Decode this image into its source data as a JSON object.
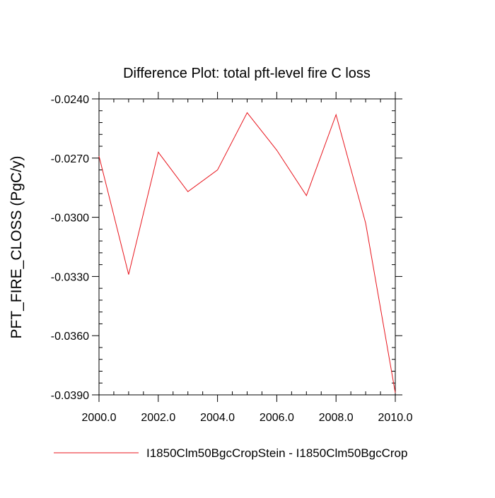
{
  "chart_data": {
    "type": "line",
    "title": "Difference Plot: total pft-level fire C loss",
    "xlabel": "",
    "ylabel": "PFT_FIRE_CLOSS  (PgC/y)",
    "xlim": [
      2000,
      2010
    ],
    "ylim": [
      -0.039,
      -0.024
    ],
    "x_ticks": [
      2000,
      2002,
      2004,
      2006,
      2008,
      2010
    ],
    "x_tick_labels": [
      "2000.0",
      "2002.0",
      "2004.0",
      "2006.0",
      "2008.0",
      "2010.0"
    ],
    "y_ticks": [
      -0.024,
      -0.027,
      -0.03,
      -0.033,
      -0.036,
      -0.039
    ],
    "y_tick_labels": [
      "-0.0240",
      "-0.0270",
      "-0.0300",
      "-0.0330",
      "-0.0360",
      "-0.0390"
    ],
    "grid": false,
    "legend_position": "bottom",
    "series": [
      {
        "name": "I1850Clm50BgcCropStein - I1850Clm50BgcCrop",
        "color": "#e8141c",
        "x": [
          2000,
          2001,
          2002,
          2003,
          2004,
          2005,
          2006,
          2007,
          2008,
          2009,
          2010
        ],
        "y": [
          -0.0269,
          -0.0329,
          -0.0267,
          -0.0287,
          -0.0276,
          -0.0247,
          -0.0266,
          -0.0289,
          -0.0248,
          -0.0303,
          -0.0389
        ]
      }
    ]
  }
}
